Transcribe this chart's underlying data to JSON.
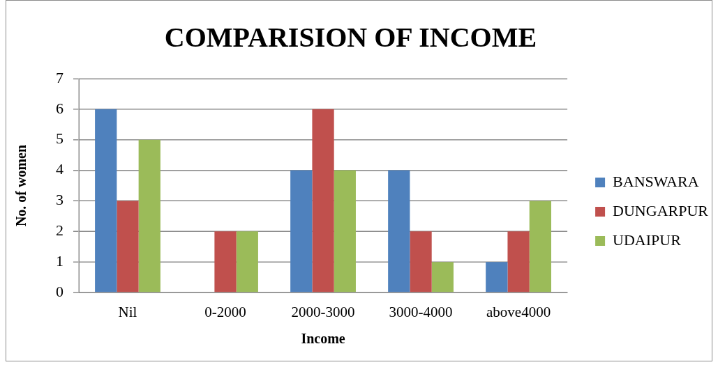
{
  "chart_data": {
    "type": "bar",
    "title": "COMPARISION OF INCOME",
    "xlabel": "Income",
    "ylabel": "No. of women",
    "categories": [
      "Nil",
      "0-2000",
      "2000-3000",
      "3000-4000",
      "above4000"
    ],
    "series": [
      {
        "name": "BANSWARA",
        "color": "#4f81bd",
        "values": [
          6,
          0,
          4,
          4,
          1
        ]
      },
      {
        "name": "DUNGARPUR",
        "color": "#c0504d",
        "values": [
          3,
          2,
          6,
          2,
          2
        ]
      },
      {
        "name": "UDAIPUR",
        "color": "#9bbb59",
        "values": [
          5,
          2,
          4,
          1,
          3
        ]
      }
    ],
    "ylim": [
      0,
      7
    ],
    "yticks": [
      0,
      1,
      2,
      3,
      4,
      5,
      6,
      7
    ],
    "grid": "y",
    "legend": "right"
  }
}
